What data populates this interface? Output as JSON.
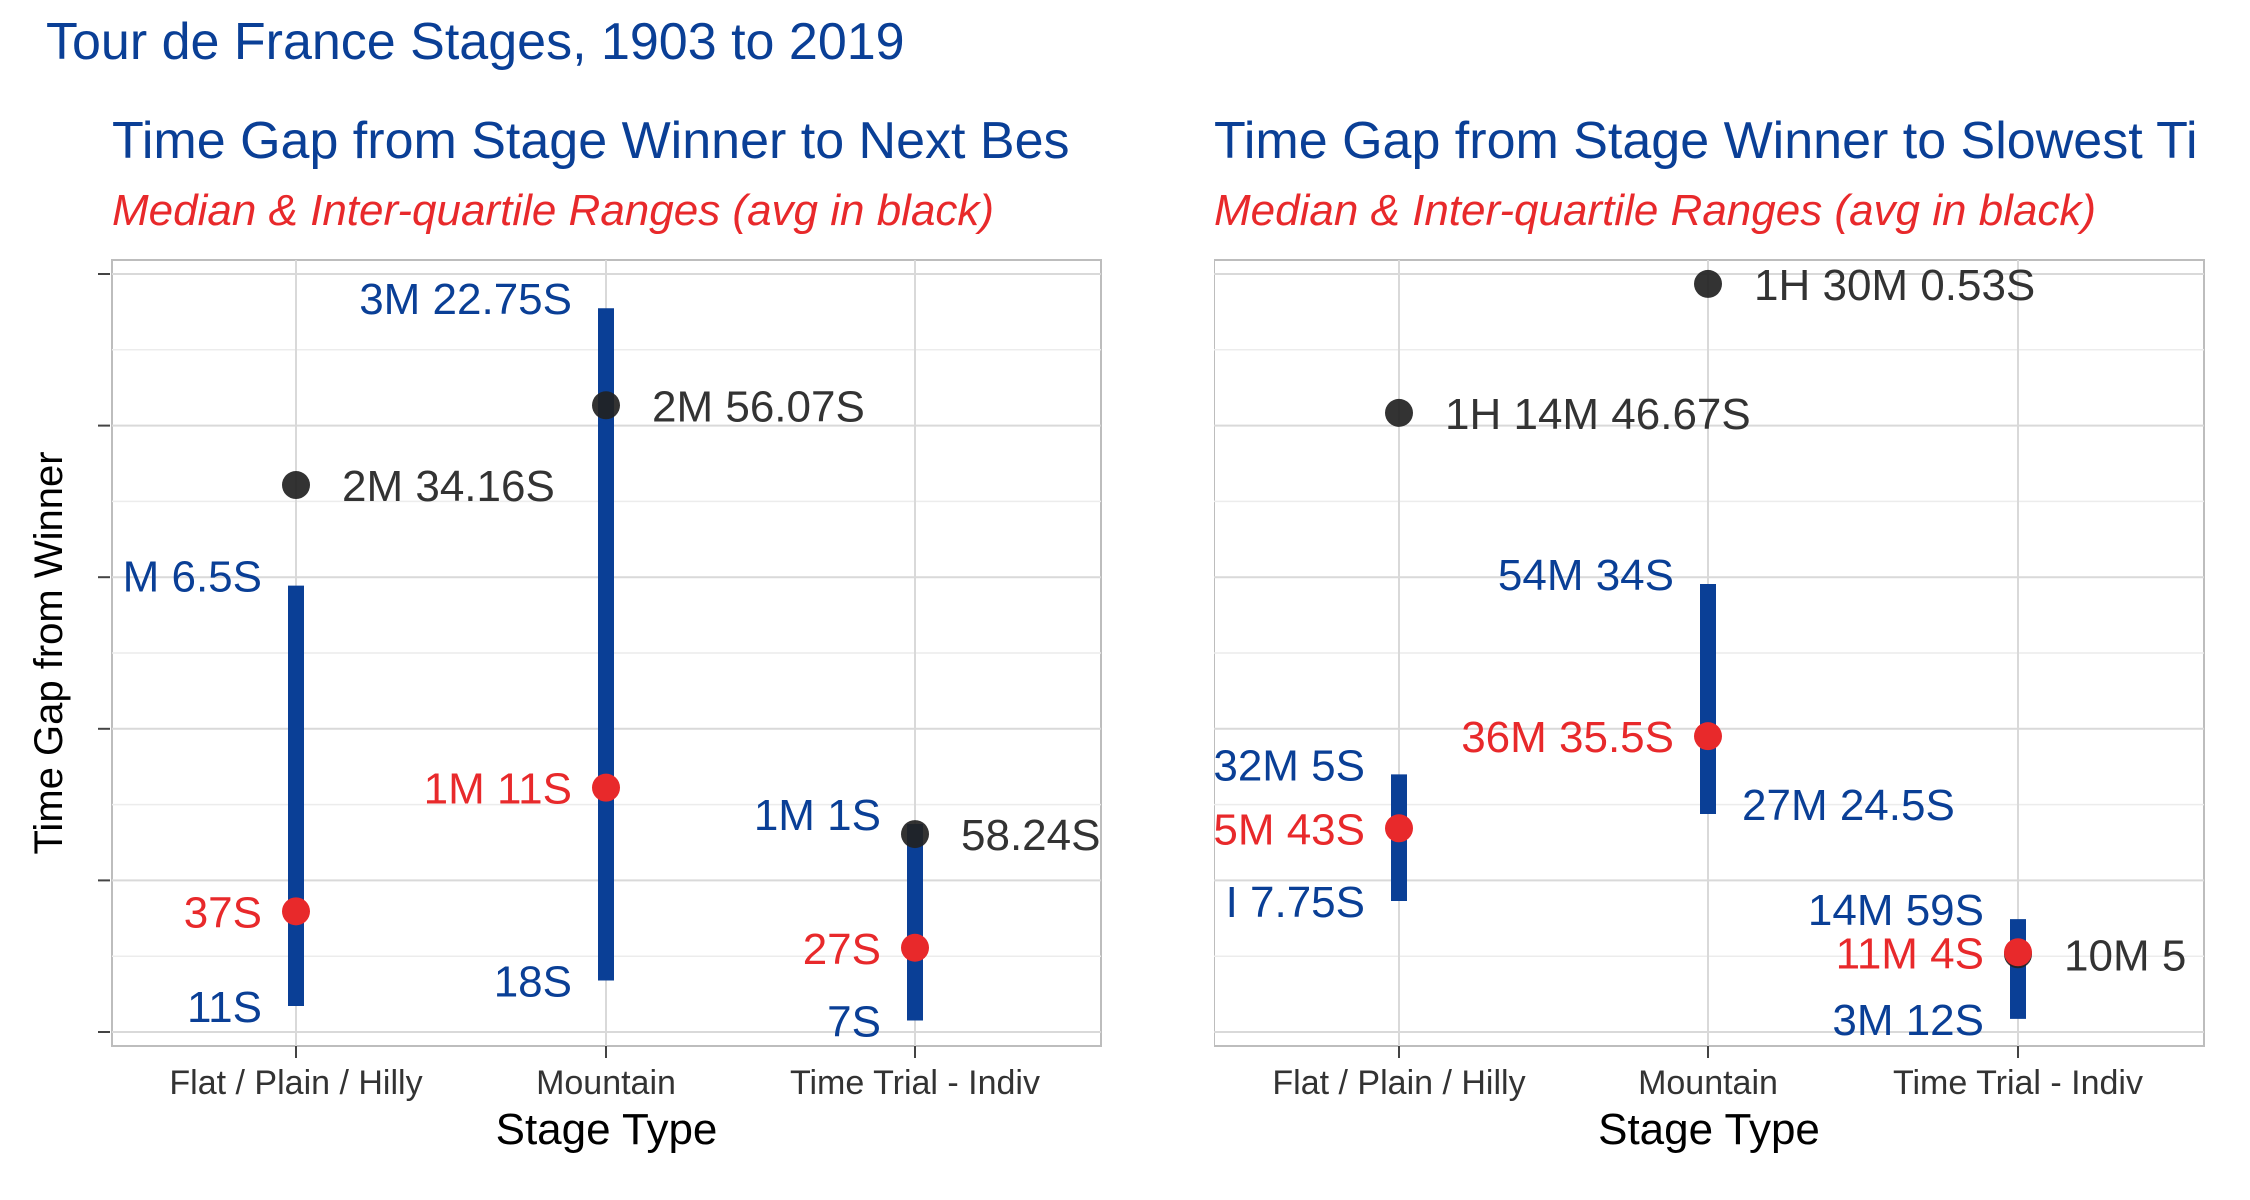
{
  "title": "Tour de France Stages, 1903 to 2019",
  "colors": {
    "title": "#0a3f96",
    "iqr": "#0a3f96",
    "median": "#e8292b",
    "mean": "#222222"
  },
  "chart_data": [
    {
      "type": "range",
      "title": "Time Gap from Stage Winner to Next Bes",
      "subtitle": "Median & Inter-quartile Ranges (avg in black)",
      "xlabel": "Stage Type",
      "ylabel": "Time Gap from Winner",
      "categories": [
        "Flat / Plain / Hilly",
        "Mountain",
        "Time Trial - Indiv"
      ],
      "unit": "seconds",
      "ylim": [
        0,
        216
      ],
      "q1": [
        11,
        18,
        7
      ],
      "median": [
        37,
        71,
        27
      ],
      "q3": [
        126.5,
        202.75,
        61
      ],
      "mean": [
        154.16,
        176.07,
        58.24
      ],
      "q1_labels": [
        "11S",
        "18S",
        "7S"
      ],
      "median_labels": [
        "37S",
        "1M 11S",
        "27S"
      ],
      "q3_labels": [
        "M 6.5S",
        "3M 22.75S",
        "1M 1S"
      ],
      "mean_labels": [
        "2M 34.16S",
        "2M 56.07S",
        "58.24S"
      ]
    },
    {
      "type": "range",
      "title": "Time Gap from Stage Winner to Slowest Ti",
      "subtitle": "Median & Inter-quartile Ranges (avg in black)",
      "xlabel": "Stage Type",
      "ylabel": "",
      "categories": [
        "Flat / Plain / Hilly",
        "Mountain",
        "Time Trial - Indiv"
      ],
      "unit": "seconds",
      "ylim": [
        0,
        5570
      ],
      "q1": [
        1027.75,
        1644.5,
        192
      ],
      "median": [
        1543,
        2195.5,
        664
      ],
      "q3": [
        1925,
        3274,
        899
      ],
      "mean": [
        4486.67,
        5400.53,
        650
      ],
      "q1_labels": [
        "I 7.75S",
        "27M 24.5S",
        "3M 12S"
      ],
      "median_labels": [
        "5M 43S",
        "36M 35.5S",
        "11M 4S"
      ],
      "q3_labels": [
        "32M 5S",
        "54M 34S",
        "14M 59S"
      ],
      "mean_labels": [
        "1H 14M 46.67S",
        "1H 30M 0.53S",
        "10M 5"
      ]
    }
  ]
}
